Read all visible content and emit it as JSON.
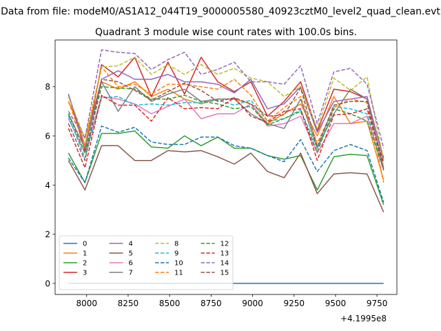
{
  "figure": {
    "suptitle": "Data from file: modeM0/AS1A12_044T19_9000005580_40923cztM0_level2_quad_clean.evt",
    "title": "Quadrant 3 module wise count rates with 100.0s bins."
  },
  "chart_data": {
    "type": "line",
    "title": "Quadrant 3 module wise count rates with 100.0s bins.",
    "xlabel": "",
    "ylabel": "",
    "x_offset_label": "+4.1995e8",
    "x_offset": 419950000,
    "x": [
      7890,
      7990,
      8090,
      8190,
      8290,
      8390,
      8490,
      8590,
      8690,
      8790,
      8890,
      8990,
      9090,
      9190,
      9290,
      9390,
      9490,
      9590,
      9690,
      9790
    ],
    "xlim": [
      7810,
      9870
    ],
    "ylim": [
      -0.45,
      9.9
    ],
    "xticks": [
      8000,
      8250,
      8500,
      8750,
      9000,
      9250,
      9500,
      9750
    ],
    "yticks": [
      0,
      2,
      4,
      6,
      8
    ],
    "grid": false,
    "legend": {
      "placement": "lower-left",
      "ncol": 4
    },
    "series": [
      {
        "name": "0",
        "color": "#1f77b4",
        "dash": "solid",
        "values": [
          0,
          0,
          0,
          0,
          0,
          0,
          0,
          0,
          0,
          0,
          0,
          0,
          0,
          0,
          0,
          0,
          0,
          0,
          0,
          0
        ]
      },
      {
        "name": "1",
        "color": "#ff7f0e",
        "dash": "solid",
        "values": [
          7.4,
          5.9,
          8.2,
          7.9,
          8.2,
          7.6,
          7.9,
          7.5,
          7.3,
          7.5,
          7.5,
          7.3,
          6.5,
          6.9,
          7.3,
          6.0,
          7.6,
          6.5,
          6.6,
          4.2
        ]
      },
      {
        "name": "2",
        "color": "#2ca02c",
        "dash": "solid",
        "values": [
          5.3,
          4.1,
          6.1,
          6.1,
          6.2,
          5.55,
          5.5,
          6.0,
          5.6,
          5.95,
          5.5,
          5.5,
          5.2,
          5.05,
          5.2,
          3.8,
          5.15,
          5.25,
          5.2,
          3.2
        ]
      },
      {
        "name": "3",
        "color": "#d62728",
        "dash": "solid",
        "values": [
          7.7,
          5.4,
          8.9,
          8.4,
          9.2,
          7.6,
          9.0,
          7.7,
          9.2,
          8.2,
          7.8,
          8.2,
          6.8,
          7.4,
          8.2,
          6.2,
          7.9,
          7.8,
          7.5,
          5.1
        ]
      },
      {
        "name": "4",
        "color": "#9467bd",
        "dash": "solid",
        "values": [
          7.7,
          5.6,
          8.3,
          8.65,
          8.3,
          8.3,
          8.5,
          8.2,
          8.2,
          8.1,
          7.75,
          8.3,
          7.1,
          7.3,
          8.0,
          6.15,
          7.4,
          7.5,
          7.6,
          5.0
        ]
      },
      {
        "name": "5",
        "color": "#8c564b",
        "dash": "solid",
        "values": [
          5.0,
          3.8,
          5.6,
          5.6,
          5.0,
          5.0,
          5.4,
          5.35,
          5.4,
          5.15,
          4.85,
          5.3,
          4.55,
          4.3,
          5.3,
          3.65,
          4.45,
          4.5,
          4.45,
          2.9
        ]
      },
      {
        "name": "6",
        "color": "#e377c2",
        "dash": "solid",
        "values": [
          6.7,
          5.3,
          7.6,
          7.5,
          7.3,
          6.9,
          7.2,
          7.5,
          6.7,
          6.9,
          6.9,
          7.3,
          6.4,
          6.5,
          6.8,
          5.3,
          6.5,
          6.5,
          6.8,
          4.6
        ]
      },
      {
        "name": "7",
        "color": "#7f7f7f",
        "dash": "solid",
        "values": [
          6.9,
          5.5,
          8.2,
          7.0,
          8.0,
          7.4,
          7.7,
          7.9,
          7.4,
          7.5,
          7.5,
          6.9,
          6.5,
          6.3,
          7.5,
          5.5,
          6.9,
          7.9,
          7.5,
          4.7
        ]
      },
      {
        "name": "8",
        "color": "#bcbd22",
        "dash": "dashed",
        "values": [
          7.6,
          5.9,
          8.8,
          8.85,
          9.2,
          8.5,
          8.9,
          8.5,
          8.9,
          8.5,
          8.75,
          8.35,
          8.2,
          7.6,
          8.0,
          6.3,
          8.35,
          7.85,
          8.4,
          5.0
        ]
      },
      {
        "name": "9",
        "color": "#17becf",
        "dash": "dashed",
        "values": [
          6.8,
          5.1,
          7.55,
          7.6,
          7.25,
          7.3,
          7.25,
          7.35,
          7.35,
          7.45,
          7.25,
          7.45,
          6.6,
          6.7,
          7.05,
          5.5,
          7.2,
          7.1,
          6.9,
          4.7
        ]
      },
      {
        "name": "10",
        "color": "#1f77b4",
        "dash": "dashed",
        "values": [
          5.1,
          4.1,
          6.4,
          6.15,
          6.35,
          5.75,
          5.65,
          5.65,
          5.95,
          5.95,
          5.6,
          5.5,
          5.2,
          4.95,
          5.85,
          4.55,
          5.4,
          5.65,
          5.4,
          3.3
        ]
      },
      {
        "name": "11",
        "color": "#ff7f0e",
        "dash": "dashed",
        "values": [
          7.4,
          5.6,
          8.8,
          8.0,
          8.1,
          7.7,
          8.1,
          8.1,
          8.0,
          7.9,
          8.3,
          7.65,
          6.6,
          7.15,
          7.6,
          5.7,
          7.15,
          7.5,
          7.35,
          4.1
        ]
      },
      {
        "name": "12",
        "color": "#2ca02c",
        "dash": "dashed",
        "values": [
          6.9,
          5.3,
          8.0,
          7.95,
          7.9,
          7.5,
          7.5,
          7.65,
          7.4,
          7.3,
          7.1,
          7.2,
          6.45,
          6.7,
          7.0,
          5.35,
          7.1,
          6.9,
          6.6,
          4.65
        ]
      },
      {
        "name": "13",
        "color": "#d62728",
        "dash": "dashed",
        "values": [
          6.3,
          4.7,
          7.65,
          7.25,
          7.25,
          6.6,
          7.55,
          7.1,
          7.15,
          7.1,
          7.55,
          6.8,
          6.55,
          7.0,
          7.1,
          5.0,
          6.85,
          6.9,
          7.1,
          4.9
        ]
      },
      {
        "name": "14",
        "color": "#9467bd",
        "dash": "dashed",
        "values": [
          7.0,
          5.9,
          9.5,
          9.4,
          9.35,
          8.7,
          9.1,
          9.4,
          8.5,
          8.7,
          9.0,
          8.2,
          8.2,
          8.1,
          8.85,
          6.5,
          8.6,
          8.75,
          8.1,
          5.5
        ]
      },
      {
        "name": "15",
        "color": "#8c564b",
        "dash": "dashed",
        "values": [
          6.5,
          5.0,
          8.3,
          8.2,
          7.85,
          7.45,
          7.8,
          8.15,
          7.85,
          7.4,
          7.55,
          7.3,
          6.8,
          6.85,
          7.95,
          5.55,
          7.25,
          7.4,
          7.4,
          4.6
        ]
      }
    ]
  }
}
